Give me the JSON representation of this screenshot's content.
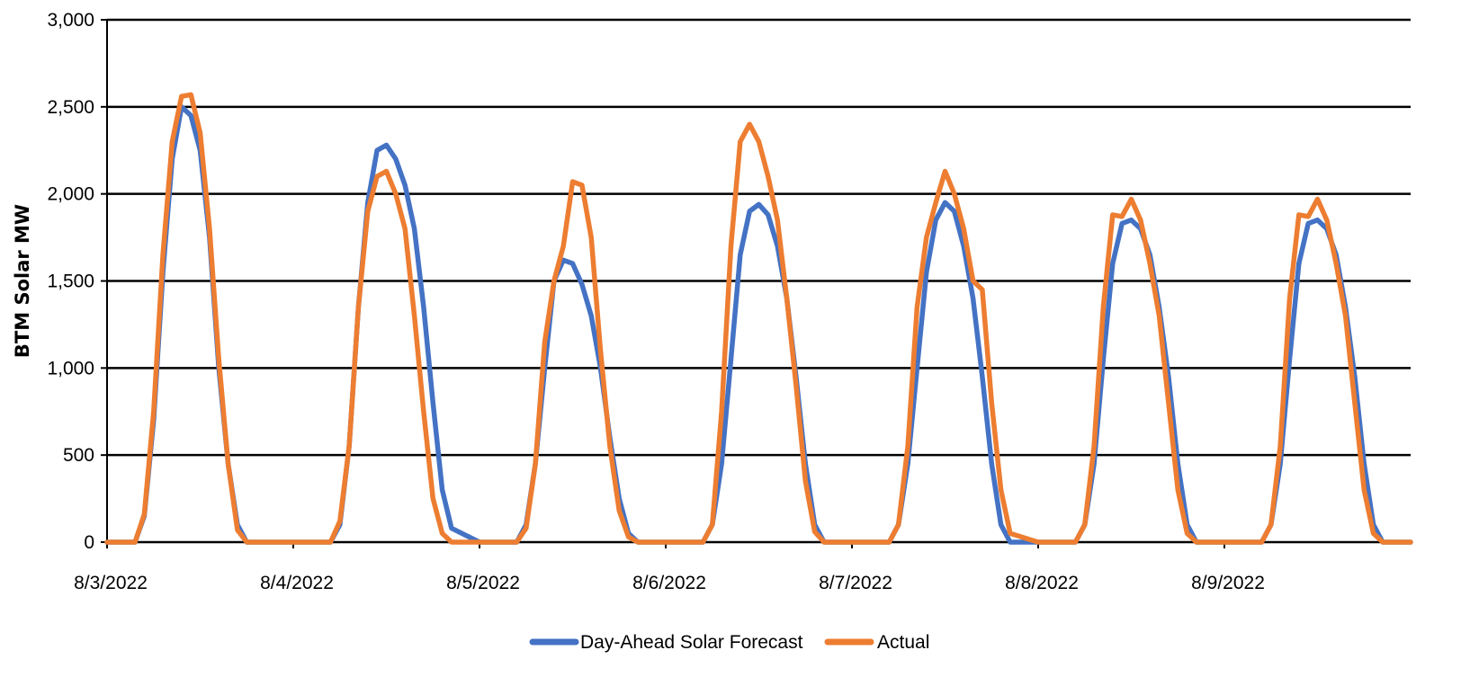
{
  "chart_data": {
    "type": "line",
    "title": "",
    "xlabel": "",
    "ylabel": "BTM Solar MW",
    "ylim": [
      0,
      3000
    ],
    "yticks": [
      0,
      500,
      1000,
      1500,
      2000,
      2500,
      3000
    ],
    "ytick_labels": [
      "0",
      "500",
      "1,000",
      "1,500",
      "2,000",
      "2,500",
      "3,000"
    ],
    "xlim": [
      0,
      7.0
    ],
    "xticks": [
      0,
      1,
      2,
      3,
      4,
      5,
      6
    ],
    "xtick_labels": [
      "8/3/2022",
      "8/4/2022",
      "8/5/2022",
      "8/6/2022",
      "8/7/2022",
      "8/8/2022",
      "8/9/2022"
    ],
    "grid": "horizontal",
    "legend_position": "bottom-center",
    "series": [
      {
        "name": "Day-Ahead Solar Forecast",
        "color": "#4472C4",
        "x": [
          0.0,
          0.15,
          0.2,
          0.25,
          0.3,
          0.35,
          0.4,
          0.45,
          0.5,
          0.55,
          0.6,
          0.65,
          0.7,
          0.75,
          0.8,
          0.85,
          1.0,
          1.2,
          1.25,
          1.3,
          1.35,
          1.4,
          1.45,
          1.5,
          1.55,
          1.6,
          1.65,
          1.7,
          1.75,
          1.8,
          1.85,
          2.0,
          2.2,
          2.25,
          2.3,
          2.35,
          2.4,
          2.45,
          2.5,
          2.55,
          2.6,
          2.65,
          2.7,
          2.75,
          2.8,
          2.85,
          3.0,
          3.2,
          3.25,
          3.3,
          3.35,
          3.4,
          3.45,
          3.5,
          3.55,
          3.6,
          3.65,
          3.7,
          3.75,
          3.8,
          3.85,
          4.0,
          4.2,
          4.25,
          4.3,
          4.35,
          4.4,
          4.45,
          4.5,
          4.55,
          4.6,
          4.65,
          4.7,
          4.75,
          4.8,
          4.85,
          5.0,
          5.2,
          5.25,
          5.3,
          5.35,
          5.4,
          5.45,
          5.5,
          5.55,
          5.6,
          5.65,
          5.7,
          5.75,
          5.8,
          5.85,
          6.0,
          6.2,
          6.25,
          6.3,
          6.35,
          6.4,
          6.45,
          6.5,
          6.55,
          6.6,
          6.65,
          6.7,
          6.75,
          6.8,
          6.85,
          7.0
        ],
        "y": [
          0,
          0,
          150,
          700,
          1550,
          2200,
          2500,
          2450,
          2250,
          1750,
          1000,
          450,
          100,
          0,
          0,
          0,
          0,
          0,
          100,
          550,
          1350,
          1950,
          2250,
          2280,
          2200,
          2050,
          1800,
          1350,
          800,
          300,
          80,
          0,
          0,
          100,
          450,
          1000,
          1500,
          1620,
          1600,
          1480,
          1300,
          1000,
          600,
          250,
          50,
          0,
          0,
          0,
          100,
          450,
          1050,
          1650,
          1900,
          1940,
          1880,
          1700,
          1400,
          950,
          450,
          100,
          0,
          0,
          0,
          100,
          450,
          1000,
          1550,
          1850,
          1950,
          1900,
          1700,
          1400,
          950,
          450,
          100,
          0,
          0,
          0,
          100,
          450,
          1050,
          1600,
          1830,
          1850,
          1800,
          1650,
          1350,
          950,
          450,
          100,
          0,
          0,
          0,
          100,
          450,
          1050,
          1600,
          1830,
          1850,
          1800,
          1650,
          1350,
          950,
          450,
          100,
          0,
          0
        ]
      },
      {
        "name": "Actual",
        "color": "#ED7D31",
        "x": [
          0.0,
          0.15,
          0.2,
          0.25,
          0.3,
          0.35,
          0.4,
          0.45,
          0.5,
          0.55,
          0.6,
          0.65,
          0.7,
          0.75,
          0.8,
          0.85,
          1.0,
          1.2,
          1.25,
          1.3,
          1.35,
          1.4,
          1.45,
          1.5,
          1.55,
          1.6,
          1.65,
          1.7,
          1.75,
          1.8,
          1.85,
          2.0,
          2.2,
          2.25,
          2.3,
          2.35,
          2.4,
          2.45,
          2.5,
          2.55,
          2.6,
          2.65,
          2.7,
          2.75,
          2.8,
          2.85,
          3.0,
          3.2,
          3.25,
          3.3,
          3.35,
          3.4,
          3.45,
          3.5,
          3.55,
          3.6,
          3.65,
          3.7,
          3.75,
          3.8,
          3.85,
          4.0,
          4.2,
          4.25,
          4.3,
          4.35,
          4.4,
          4.45,
          4.5,
          4.55,
          4.6,
          4.65,
          4.7,
          4.75,
          4.8,
          4.85,
          5.0,
          5.2,
          5.25,
          5.3,
          5.35,
          5.4,
          5.45,
          5.5,
          5.55,
          5.6,
          5.65,
          5.7,
          5.75,
          5.8,
          5.85,
          6.0,
          6.2,
          6.25,
          6.3,
          6.35,
          6.4,
          6.45,
          6.5,
          6.55,
          6.6,
          6.65,
          6.7,
          6.75,
          6.8,
          6.85,
          7.0
        ],
        "y": [
          0,
          0,
          160,
          750,
          1650,
          2300,
          2560,
          2570,
          2350,
          1800,
          1050,
          450,
          70,
          0,
          0,
          0,
          0,
          0,
          120,
          550,
          1350,
          1900,
          2100,
          2130,
          2000,
          1800,
          1300,
          750,
          250,
          50,
          0,
          0,
          0,
          80,
          450,
          1150,
          1500,
          1700,
          2070,
          2050,
          1750,
          1100,
          550,
          180,
          30,
          0,
          0,
          0,
          100,
          750,
          1700,
          2300,
          2400,
          2300,
          2100,
          1850,
          1400,
          900,
          350,
          60,
          0,
          0,
          0,
          100,
          550,
          1350,
          1750,
          1950,
          2130,
          2000,
          1800,
          1500,
          1450,
          800,
          300,
          50,
          0,
          0,
          100,
          550,
          1350,
          1880,
          1870,
          1970,
          1850,
          1600,
          1300,
          800,
          300,
          50,
          0,
          0,
          0,
          100,
          550,
          1400,
          1880,
          1870,
          1970,
          1850,
          1600,
          1300,
          800,
          300,
          50,
          0,
          0
        ]
      }
    ]
  }
}
